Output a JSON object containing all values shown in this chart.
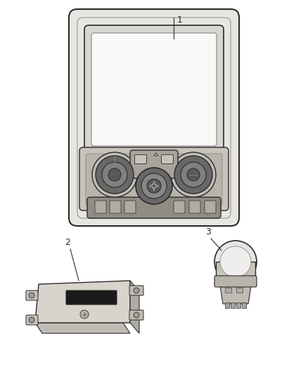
{
  "background_color": "#ffffff",
  "line_color": "#2a2a2a",
  "line_color_light": "#888888",
  "fill_outer": "#e8e6e0",
  "fill_screen": "#f0f0ee",
  "fill_ctrl": "#c8c4bc",
  "fill_knob": "#686868",
  "fill_knob_inner": "#909090",
  "fill_btn": "#b0aca4",
  "fill_module": "#d8d4cc",
  "fill_switch": "#d8d4cc",
  "label1": "1",
  "label2": "2",
  "label3": "3",
  "fig_width": 4.38,
  "fig_height": 5.33,
  "dpi": 100
}
